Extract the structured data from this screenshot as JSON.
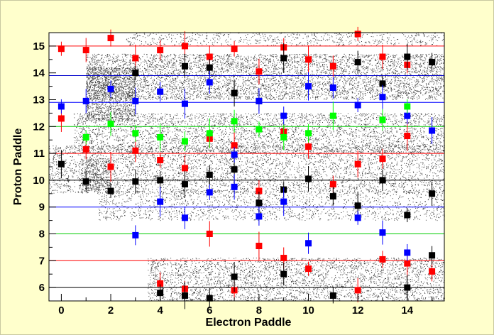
{
  "chart_data": {
    "type": "scatter",
    "xlabel": "Electron Paddle",
    "ylabel": "Proton Paddle",
    "xlim": [
      -0.5,
      15.5
    ],
    "ylim": [
      5.5,
      15.5
    ],
    "x_ticks": [
      "0",
      "2",
      "4",
      "6",
      "8",
      "10",
      "12",
      "14"
    ],
    "y_ticks": [
      "6",
      "7",
      "8",
      "9",
      "10",
      "11",
      "12",
      "13",
      "14",
      "15"
    ],
    "grid": false,
    "legend": "none",
    "reference_lines": [
      {
        "y": 15,
        "color": "#ff0000"
      },
      {
        "y": 13.9,
        "color": "#0000cc"
      },
      {
        "y": 12.9,
        "color": "#0000ff"
      },
      {
        "y": 12.0,
        "color": "#00cc00"
      },
      {
        "y": 11.0,
        "color": "#ff0000"
      },
      {
        "y": 10.0,
        "color": "#000000"
      },
      {
        "y": 9.0,
        "color": "#0000ff"
      },
      {
        "y": 8.0,
        "color": "#00cc00"
      },
      {
        "y": 7.0,
        "color": "#ff0000"
      },
      {
        "y": 6.0,
        "color": "#000000"
      }
    ],
    "series": [
      {
        "color": "#ff0000",
        "points": [
          [
            0,
            14.9
          ],
          [
            1,
            14.85
          ],
          [
            2,
            15.3
          ],
          [
            3,
            14.55
          ],
          [
            4,
            14.85
          ],
          [
            5,
            15.0
          ],
          [
            6,
            14.6
          ],
          [
            7,
            14.9
          ],
          [
            8,
            14.05
          ],
          [
            9,
            14.95
          ],
          [
            10,
            14.5
          ],
          [
            11,
            14.25
          ],
          [
            12,
            15.45
          ],
          [
            13,
            14.6
          ],
          [
            14,
            14.3
          ],
          [
            0,
            12.3
          ],
          [
            1,
            11.15
          ],
          [
            2,
            10.5
          ],
          [
            3,
            11.1
          ],
          [
            4,
            10.75
          ],
          [
            5,
            10.45
          ],
          [
            6,
            11.55
          ],
          [
            7,
            11.3
          ],
          [
            8,
            9.6
          ],
          [
            9,
            11.8
          ],
          [
            10,
            11.25
          ],
          [
            11,
            9.85
          ],
          [
            12,
            10.6
          ],
          [
            13,
            10.8
          ],
          [
            14,
            11.65
          ],
          [
            4,
            6.15
          ],
          [
            5,
            5.95
          ],
          [
            6,
            8.0
          ],
          [
            7,
            5.9
          ],
          [
            8,
            7.55
          ],
          [
            9,
            7.1
          ],
          [
            10,
            6.7
          ],
          [
            12,
            5.9
          ],
          [
            13,
            7.05
          ],
          [
            14,
            6.9
          ],
          [
            15,
            6.6
          ]
        ]
      },
      {
        "color": "#000000",
        "points": [
          [
            3,
            14.0
          ],
          [
            5,
            14.25
          ],
          [
            6,
            14.2
          ],
          [
            7,
            13.25
          ],
          [
            8,
            12.95
          ],
          [
            9,
            14.55
          ],
          [
            12,
            14.4
          ],
          [
            13,
            13.6
          ],
          [
            14,
            14.6
          ],
          [
            15,
            14.4
          ],
          [
            0,
            10.6
          ],
          [
            1,
            9.95
          ],
          [
            2,
            9.6
          ],
          [
            3,
            9.95
          ],
          [
            4,
            10.0
          ],
          [
            5,
            9.85
          ],
          [
            6,
            10.2
          ],
          [
            7,
            10.4
          ],
          [
            8,
            9.15
          ],
          [
            9,
            9.65
          ],
          [
            10,
            10.05
          ],
          [
            11,
            9.4
          ],
          [
            12,
            9.05
          ],
          [
            13,
            10.0
          ],
          [
            14,
            8.7
          ],
          [
            15,
            9.5
          ],
          [
            4,
            5.8
          ],
          [
            5,
            5.7
          ],
          [
            6,
            5.6
          ],
          [
            7,
            6.4
          ],
          [
            9,
            6.5
          ],
          [
            11,
            5.7
          ],
          [
            14,
            6.0
          ],
          [
            15,
            7.2
          ]
        ]
      },
      {
        "color": "#0000ff",
        "points": [
          [
            0,
            12.75
          ],
          [
            1,
            12.95
          ],
          [
            2,
            13.4
          ],
          [
            3,
            12.95
          ],
          [
            4,
            13.3
          ],
          [
            5,
            12.85
          ],
          [
            6,
            13.65
          ],
          [
            7,
            10.95
          ],
          [
            8,
            12.95
          ],
          [
            9,
            12.4
          ],
          [
            10,
            13.5
          ],
          [
            11,
            13.45
          ],
          [
            12,
            12.8
          ],
          [
            13,
            13.1
          ],
          [
            14,
            12.4
          ],
          [
            15,
            11.85
          ],
          [
            3,
            7.95
          ],
          [
            4,
            9.2
          ],
          [
            5,
            8.6
          ],
          [
            6,
            9.55
          ],
          [
            7,
            9.75
          ],
          [
            8,
            8.65
          ],
          [
            9,
            9.2
          ],
          [
            10,
            7.65
          ],
          [
            12,
            8.6
          ],
          [
            13,
            8.05
          ],
          [
            14,
            7.3
          ]
        ]
      },
      {
        "color": "#00ff00",
        "points": [
          [
            1,
            11.6
          ],
          [
            2,
            12.1
          ],
          [
            3,
            11.75
          ],
          [
            4,
            11.6
          ],
          [
            5,
            11.45
          ],
          [
            6,
            11.75
          ],
          [
            7,
            12.2
          ],
          [
            8,
            11.9
          ],
          [
            9,
            11.6
          ],
          [
            10,
            11.75
          ],
          [
            11,
            12.4
          ],
          [
            13,
            12.25
          ],
          [
            14,
            12.75
          ]
        ]
      }
    ]
  }
}
